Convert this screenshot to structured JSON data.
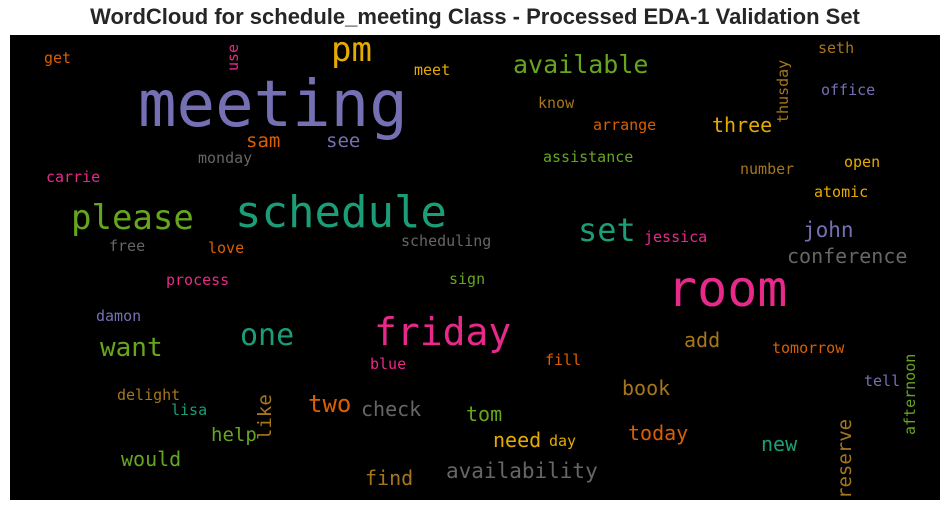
{
  "title": "WordCloud for schedule_meeting Class - Processed EDA-1 Validation Set",
  "words": [
    {
      "text": "meeting",
      "color": "#7570b3"
    },
    {
      "text": "schedule",
      "color": "#1b9e77"
    },
    {
      "text": "room",
      "color": "#e7298a"
    },
    {
      "text": "friday",
      "color": "#e7298a"
    },
    {
      "text": "please",
      "color": "#66a61e"
    },
    {
      "text": "pm",
      "color": "#e6ab02"
    },
    {
      "text": "available",
      "color": "#66a61e"
    },
    {
      "text": "set",
      "color": "#1b9e77"
    },
    {
      "text": "one",
      "color": "#1b9e77"
    },
    {
      "text": "want",
      "color": "#66a61e"
    },
    {
      "text": "two",
      "color": "#d95f02"
    },
    {
      "text": "conference",
      "color": "#666666"
    },
    {
      "text": "availability",
      "color": "#666666"
    },
    {
      "text": "three",
      "color": "#e6ab02"
    },
    {
      "text": "john",
      "color": "#7570b3"
    },
    {
      "text": "sam",
      "color": "#d95f02"
    },
    {
      "text": "see",
      "color": "#7570b3"
    },
    {
      "text": "check",
      "color": "#666666"
    },
    {
      "text": "book",
      "color": "#a6761d"
    },
    {
      "text": "today",
      "color": "#d95f02"
    },
    {
      "text": "tom",
      "color": "#66a61e"
    },
    {
      "text": "need",
      "color": "#e6ab02"
    },
    {
      "text": "find",
      "color": "#a6761d"
    },
    {
      "text": "would",
      "color": "#66a61e"
    },
    {
      "text": "help",
      "color": "#66a61e"
    },
    {
      "text": "new",
      "color": "#1b9e77"
    },
    {
      "text": "add",
      "color": "#a6761d"
    },
    {
      "text": "like",
      "color": "#a6761d"
    },
    {
      "text": "reserve",
      "color": "#a6761d"
    },
    {
      "text": "afternoon",
      "color": "#66a61e"
    },
    {
      "text": "thusday",
      "color": "#a6761d"
    },
    {
      "text": "use",
      "color": "#e7298a"
    },
    {
      "text": "get",
      "color": "#d95f02"
    },
    {
      "text": "meet",
      "color": "#e6ab02"
    },
    {
      "text": "know",
      "color": "#a6761d"
    },
    {
      "text": "arrange",
      "color": "#d95f02"
    },
    {
      "text": "seth",
      "color": "#a6761d"
    },
    {
      "text": "office",
      "color": "#7570b3"
    },
    {
      "text": "monday",
      "color": "#666666"
    },
    {
      "text": "assistance",
      "color": "#66a61e"
    },
    {
      "text": "number",
      "color": "#a6761d"
    },
    {
      "text": "open",
      "color": "#e6ab02"
    },
    {
      "text": "carrie",
      "color": "#e7298a"
    },
    {
      "text": "atomic",
      "color": "#e6ab02"
    },
    {
      "text": "free",
      "color": "#666666"
    },
    {
      "text": "love",
      "color": "#d95f02"
    },
    {
      "text": "scheduling",
      "color": "#666666"
    },
    {
      "text": "jessica",
      "color": "#e7298a"
    },
    {
      "text": "process",
      "color": "#e7298a"
    },
    {
      "text": "sign",
      "color": "#66a61e"
    },
    {
      "text": "damon",
      "color": "#7570b3"
    },
    {
      "text": "blue",
      "color": "#e7298a"
    },
    {
      "text": "fill",
      "color": "#d95f02"
    },
    {
      "text": "tomorrow",
      "color": "#d95f02"
    },
    {
      "text": "delight",
      "color": "#a6761d"
    },
    {
      "text": "lisa",
      "color": "#1b9e77"
    },
    {
      "text": "tell",
      "color": "#7570b3"
    },
    {
      "text": "day",
      "color": "#e6ab02"
    }
  ]
}
